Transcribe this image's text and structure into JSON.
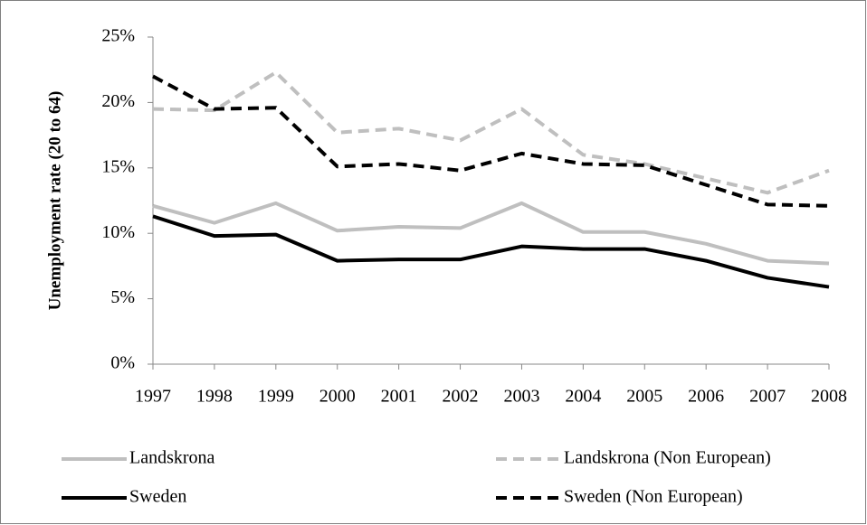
{
  "chart_data": {
    "type": "line",
    "y_label": "Unemployment rate (20 to 64)",
    "categories": [
      "1997",
      "1998",
      "1999",
      "2000",
      "2001",
      "2002",
      "2003",
      "2004",
      "2005",
      "2006",
      "2007",
      "2008"
    ],
    "ylim": [
      0,
      25
    ],
    "yticks": [
      {
        "value": 0,
        "label": "0%"
      },
      {
        "value": 5,
        "label": "5%"
      },
      {
        "value": 10,
        "label": "10%"
      },
      {
        "value": 15,
        "label": "15%"
      },
      {
        "value": 20,
        "label": "20%"
      },
      {
        "value": 25,
        "label": "25%"
      }
    ],
    "grid": false,
    "legend": "bottom",
    "series": [
      {
        "name": "Landskrona",
        "color": "#bfbfbf",
        "dashed": false,
        "values": [
          12.1,
          10.8,
          12.3,
          10.2,
          10.5,
          10.4,
          12.3,
          10.1,
          10.1,
          9.2,
          7.9,
          7.7
        ]
      },
      {
        "name": "Landskrona (Non European)",
        "color": "#bfbfbf",
        "dashed": true,
        "values": [
          19.5,
          19.4,
          22.3,
          17.7,
          18.0,
          17.1,
          19.5,
          16.0,
          15.3,
          14.2,
          13.1,
          14.8
        ]
      },
      {
        "name": "Sweden",
        "color": "#000000",
        "dashed": false,
        "values": [
          11.3,
          9.8,
          9.9,
          7.9,
          8.0,
          8.0,
          9.0,
          8.8,
          8.8,
          7.9,
          6.6,
          5.9
        ]
      },
      {
        "name": "Sweden (Non European)",
        "color": "#000000",
        "dashed": true,
        "values": [
          22.0,
          19.5,
          19.6,
          15.1,
          15.3,
          14.8,
          16.1,
          15.3,
          15.2,
          13.7,
          12.2,
          12.1
        ]
      }
    ]
  }
}
